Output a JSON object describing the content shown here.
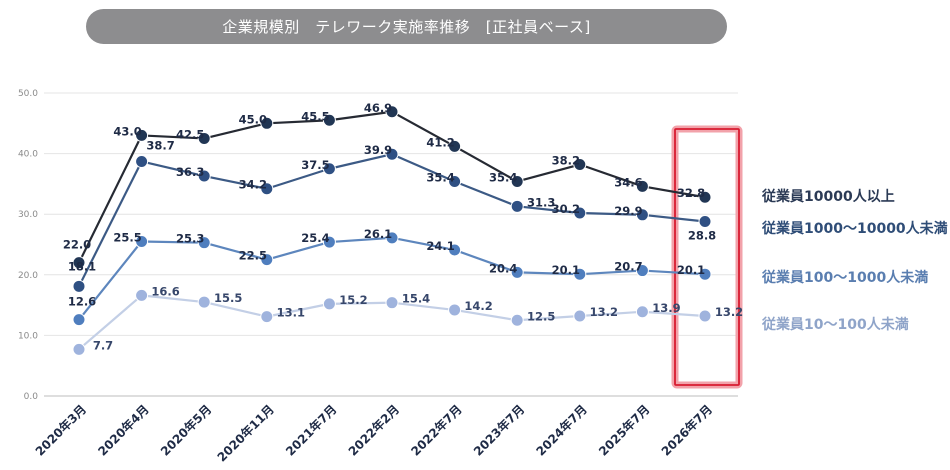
{
  "chart_data": {
    "type": "line",
    "title": "企業規模別　テレワーク実施率推移　[正社員ベース]",
    "categories": [
      "2020年3月",
      "2020年4月",
      "2020年5月",
      "2020年11月",
      "2021年7月",
      "2022年2月",
      "2022年7月",
      "2023年7月",
      "2024年7月",
      "2025年7月",
      "2026年7月"
    ],
    "ylim": [
      0,
      50
    ],
    "yticks": [
      "0.0",
      "10.0",
      "20.0",
      "30.0",
      "40.0",
      "50.0"
    ],
    "grid": true,
    "highlight_category": "2026年7月",
    "series": [
      {
        "name": "従業員10000人以上",
        "color": "#213654",
        "line_color": "#262a33",
        "values": [
          22.0,
          43.0,
          42.5,
          45.0,
          45.5,
          46.9,
          41.2,
          35.4,
          38.2,
          34.6,
          32.8
        ],
        "labels": [
          "22.0",
          "43.0",
          "42.5",
          "45.0",
          "45.5",
          "46.9",
          "41.2",
          "35.4",
          "38.2",
          "34.6",
          "32.8"
        ]
      },
      {
        "name": "従業員1000〜10000人未満",
        "color": "#2f5083",
        "line_color": "#3c5a85",
        "values": [
          18.1,
          38.7,
          36.3,
          34.2,
          37.5,
          39.9,
          35.4,
          31.3,
          30.2,
          29.9,
          28.8
        ],
        "labels": [
          "18.1",
          "38.7",
          "36.3",
          "34.2",
          "37.5",
          "39.9",
          "35.4",
          "31.3",
          "30.2",
          "29.9",
          "28.8"
        ]
      },
      {
        "name": "従業員100〜1000人未満",
        "color": "#4f7ebe",
        "line_color": "#5d86bd",
        "values": [
          12.6,
          25.5,
          25.3,
          22.5,
          25.4,
          26.1,
          24.1,
          20.4,
          20.1,
          20.7,
          20.1
        ],
        "labels": [
          "12.6",
          "25.5",
          "25.3",
          "22.5",
          "25.4",
          "26.1",
          "24.1",
          "20.4",
          "20.1",
          "20.7",
          "20.1"
        ]
      },
      {
        "name": "従業員10〜100人未満",
        "color": "#9fb3dd",
        "line_color": "#c3cfe6",
        "values": [
          7.7,
          16.6,
          15.5,
          13.1,
          15.2,
          15.4,
          14.2,
          12.5,
          13.2,
          13.9,
          13.2
        ],
        "labels": [
          "7.7",
          "16.6",
          "15.5",
          "13.1",
          "15.2",
          "15.4",
          "14.2",
          "12.5",
          "13.2",
          "13.9",
          "13.2"
        ]
      }
    ]
  }
}
